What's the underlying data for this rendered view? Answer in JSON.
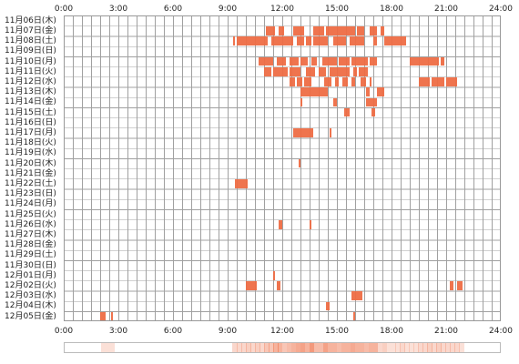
{
  "hour_labels": [
    "0:00",
    "3:00",
    "6:00",
    "9:00",
    "12:00",
    "15:00",
    "18:00",
    "21:00",
    "24:00"
  ],
  "days": [
    {
      "label": "11月06日(木)",
      "bars": []
    },
    {
      "label": "11月07日(金)",
      "bars": [
        [
          11.1,
          11.6
        ],
        [
          11.8,
          12.1
        ],
        [
          12.6,
          13.2
        ],
        [
          13.7,
          14.3
        ],
        [
          14.4,
          16.0
        ],
        [
          16.1,
          16.5
        ],
        [
          16.8,
          17.2
        ],
        [
          17.4,
          17.6
        ]
      ]
    },
    {
      "label": "11月08日(土)",
      "bars": [
        [
          9.3,
          9.4
        ],
        [
          9.5,
          11.2
        ],
        [
          11.4,
          12.6
        ],
        [
          12.8,
          13.2
        ],
        [
          13.3,
          13.6
        ],
        [
          13.7,
          14.5
        ],
        [
          14.8,
          15.5
        ],
        [
          15.7,
          16.5
        ],
        [
          17.0,
          17.2
        ],
        [
          17.6,
          18.6
        ],
        [
          18.6,
          18.8
        ]
      ]
    },
    {
      "label": "11月09日(日)",
      "bars": []
    },
    {
      "label": "11月10日(月)",
      "bars": [
        [
          10.7,
          11.5
        ],
        [
          11.7,
          12.2
        ],
        [
          12.4,
          12.9
        ],
        [
          13.0,
          13.4
        ],
        [
          13.6,
          13.9
        ],
        [
          14.2,
          15.0
        ],
        [
          15.1,
          15.7
        ],
        [
          15.8,
          16.7
        ],
        [
          16.8,
          17.2
        ],
        [
          19.0,
          20.6
        ],
        [
          20.7,
          20.9
        ]
      ]
    },
    {
      "label": "11月11日(火)",
      "bars": [
        [
          11.0,
          11.4
        ],
        [
          11.5,
          12.3
        ],
        [
          12.4,
          13.0
        ],
        [
          13.3,
          13.8
        ],
        [
          14.0,
          14.4
        ],
        [
          14.6,
          15.7
        ],
        [
          15.9,
          16.1
        ],
        [
          16.2,
          16.7
        ]
      ]
    },
    {
      "label": "11月12日(水)",
      "bars": [
        [
          12.4,
          12.7
        ],
        [
          12.8,
          13.1
        ],
        [
          13.2,
          13.6
        ],
        [
          14.3,
          14.7
        ],
        [
          14.9,
          15.1
        ],
        [
          15.3,
          15.6
        ],
        [
          15.8,
          16.0
        ],
        [
          16.3,
          16.6
        ],
        [
          16.8,
          16.9
        ],
        [
          19.5,
          20.1
        ],
        [
          20.2,
          20.9
        ],
        [
          21.0,
          21.6
        ]
      ]
    },
    {
      "label": "11月13日(木)",
      "bars": [
        [
          13.0,
          14.5
        ],
        [
          16.6,
          16.8
        ],
        [
          17.2,
          17.6
        ]
      ]
    },
    {
      "label": "11月14日(金)",
      "bars": [
        [
          13.0,
          13.1
        ],
        [
          14.8,
          15.0
        ],
        [
          16.6,
          17.2
        ]
      ]
    },
    {
      "label": "11月15日(土)",
      "bars": [
        [
          15.4,
          15.7
        ],
        [
          16.9,
          17.1
        ]
      ]
    },
    {
      "label": "11月16日(日)",
      "bars": []
    },
    {
      "label": "11月17日(月)",
      "bars": [
        [
          12.6,
          13.7
        ],
        [
          14.6,
          14.7
        ]
      ]
    },
    {
      "label": "11月18日(火)",
      "bars": []
    },
    {
      "label": "11月19日(水)",
      "bars": []
    },
    {
      "label": "11月20日(木)",
      "bars": [
        [
          12.9,
          13.0
        ]
      ]
    },
    {
      "label": "11月21日(金)",
      "bars": []
    },
    {
      "label": "11月22日(土)",
      "bars": [
        [
          9.4,
          10.1
        ]
      ]
    },
    {
      "label": "11月23日(日)",
      "bars": []
    },
    {
      "label": "11月24日(月)",
      "bars": []
    },
    {
      "label": "11月25日(火)",
      "bars": []
    },
    {
      "label": "11月26日(水)",
      "bars": [
        [
          11.8,
          12.0
        ],
        [
          13.5,
          13.6
        ]
      ]
    },
    {
      "label": "11月27日(木)",
      "bars": []
    },
    {
      "label": "11月28日(金)",
      "bars": []
    },
    {
      "label": "11月29日(土)",
      "bars": []
    },
    {
      "label": "11月30日(日)",
      "bars": []
    },
    {
      "label": "12月01日(月)",
      "bars": [
        [
          11.5,
          11.6
        ]
      ]
    },
    {
      "label": "12月02日(火)",
      "bars": [
        [
          10.0,
          10.6
        ],
        [
          11.7,
          11.9
        ],
        [
          21.2,
          21.4
        ],
        [
          21.6,
          21.9
        ]
      ]
    },
    {
      "label": "12月03日(水)",
      "bars": [
        [
          15.8,
          16.4
        ]
      ]
    },
    {
      "label": "12月04日(木)",
      "bars": [
        [
          14.4,
          14.6
        ]
      ]
    },
    {
      "label": "12月05日(金)",
      "bars": [
        [
          2.0,
          2.3
        ],
        [
          2.6,
          2.7
        ],
        [
          15.9,
          16.0
        ]
      ]
    }
  ],
  "colors": {
    "bar": "#ee6d44",
    "grid": "#a0a0a0"
  }
}
